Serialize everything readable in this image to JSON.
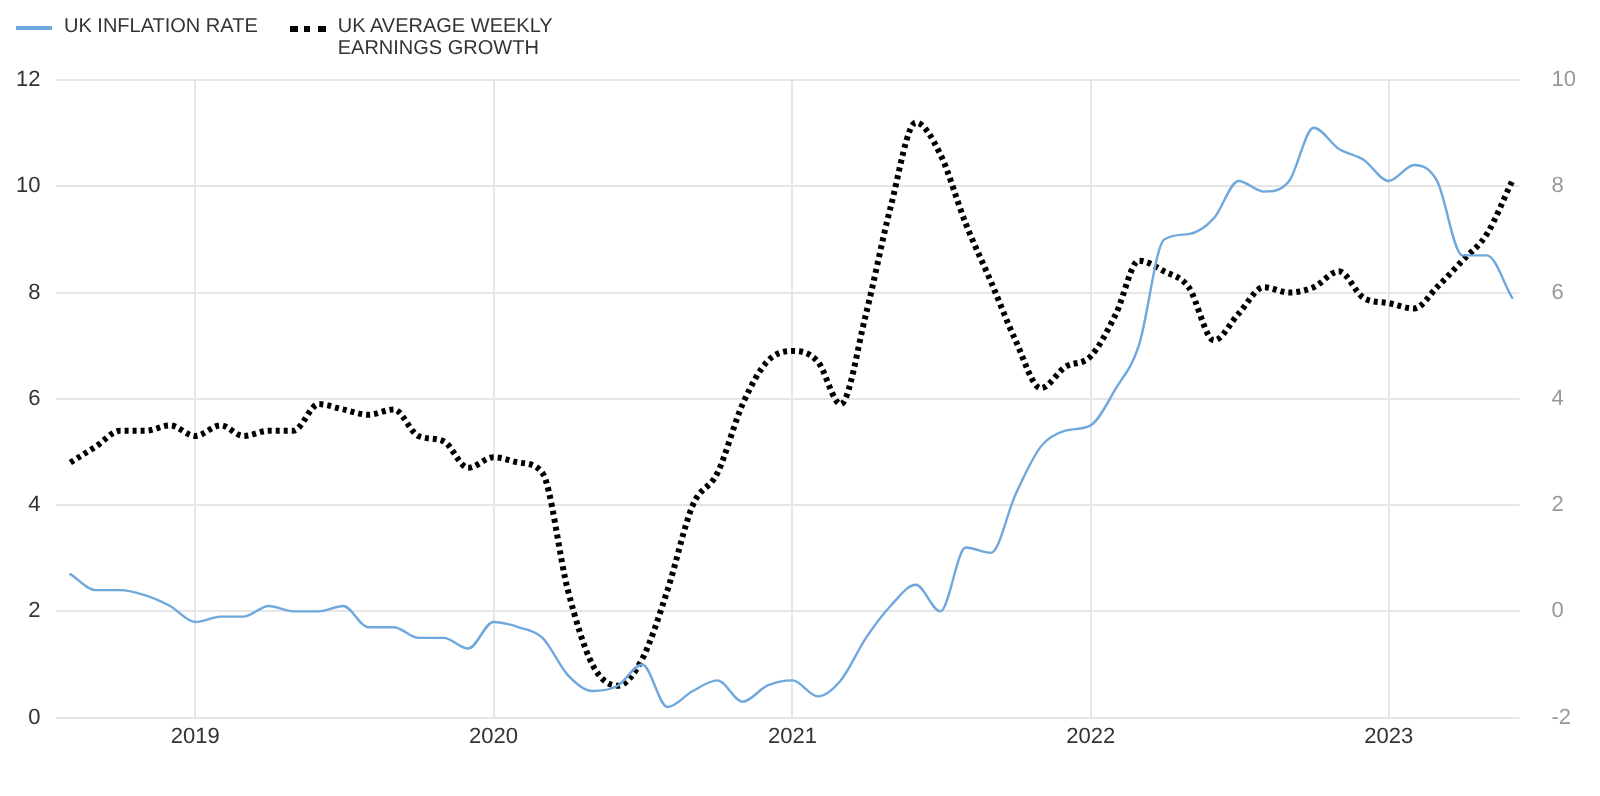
{
  "chart_data": {
    "type": "line",
    "x": [
      "2018-08",
      "2018-09",
      "2018-10",
      "2018-11",
      "2018-12",
      "2019-01",
      "2019-02",
      "2019-03",
      "2019-04",
      "2019-05",
      "2019-06",
      "2019-07",
      "2019-08",
      "2019-09",
      "2019-10",
      "2019-11",
      "2019-12",
      "2020-01",
      "2020-02",
      "2020-03",
      "2020-04",
      "2020-05",
      "2020-06",
      "2020-07",
      "2020-08",
      "2020-09",
      "2020-10",
      "2020-11",
      "2020-12",
      "2021-01",
      "2021-02",
      "2021-03",
      "2021-04",
      "2021-05",
      "2021-06",
      "2021-07",
      "2021-08",
      "2021-09",
      "2021-10",
      "2021-11",
      "2021-12",
      "2022-01",
      "2022-02",
      "2022-03",
      "2022-04",
      "2022-05",
      "2022-06",
      "2022-07",
      "2022-08",
      "2022-09",
      "2022-10",
      "2022-11",
      "2022-12",
      "2023-01",
      "2023-02",
      "2023-03",
      "2023-04",
      "2023-05",
      "2023-06"
    ],
    "series": [
      {
        "name": "UK INFLATION RATE",
        "color": "#6fa8dc",
        "line_style": "solid",
        "values": [
          2.7,
          2.4,
          2.4,
          2.3,
          2.1,
          1.8,
          1.9,
          1.9,
          2.1,
          2.0,
          2.0,
          2.1,
          1.7,
          1.7,
          1.5,
          1.5,
          1.3,
          1.8,
          1.7,
          1.5,
          0.8,
          0.5,
          0.6,
          1.0,
          0.2,
          0.5,
          0.7,
          0.3,
          0.6,
          0.7,
          0.4,
          0.7,
          1.5,
          2.1,
          2.5,
          2.0,
          3.2,
          3.1,
          4.2,
          5.1,
          5.4,
          5.5,
          6.2,
          7.0,
          9.0,
          9.1,
          9.4,
          10.1,
          9.9,
          10.1,
          11.1,
          10.7,
          10.5,
          10.1,
          10.4,
          10.1,
          8.7,
          8.7,
          7.9
        ]
      },
      {
        "name": "UK AVERAGE WEEKLY EARNINGS GROWTH",
        "color": "#000000",
        "line_style": "dotted",
        "axis": "y2",
        "values": [
          2.8,
          3.1,
          3.4,
          3.4,
          3.5,
          3.3,
          3.5,
          3.3,
          3.4,
          3.4,
          3.9,
          3.8,
          3.7,
          3.8,
          3.3,
          3.2,
          2.7,
          2.9,
          2.8,
          2.6,
          0.4,
          -1.0,
          -1.4,
          -0.9,
          0.4,
          2.0,
          2.6,
          3.9,
          4.7,
          4.9,
          4.7,
          3.9,
          5.6,
          7.6,
          9.2,
          8.6,
          7.3,
          6.2,
          5.1,
          4.2,
          4.6,
          4.8,
          5.6,
          6.6,
          6.4,
          6.1,
          5.1,
          5.6,
          6.1,
          6.0,
          6.1,
          6.4,
          5.9,
          5.8,
          5.7,
          6.1,
          6.6,
          7.1,
          8.1
        ]
      }
    ],
    "xlim": [
      "2018-07-15",
      "2023-06-10"
    ],
    "xticks": [
      "2019",
      "2020",
      "2021",
      "2022",
      "2023"
    ],
    "ylim": [
      0,
      12
    ],
    "yticks": [
      0,
      2,
      4,
      6,
      8,
      10,
      12
    ],
    "y2lim": [
      -2,
      10
    ],
    "y2ticks": [
      -2,
      0,
      2,
      4,
      6,
      8,
      10
    ],
    "grid": true,
    "legend": "top left",
    "marker": "none"
  }
}
